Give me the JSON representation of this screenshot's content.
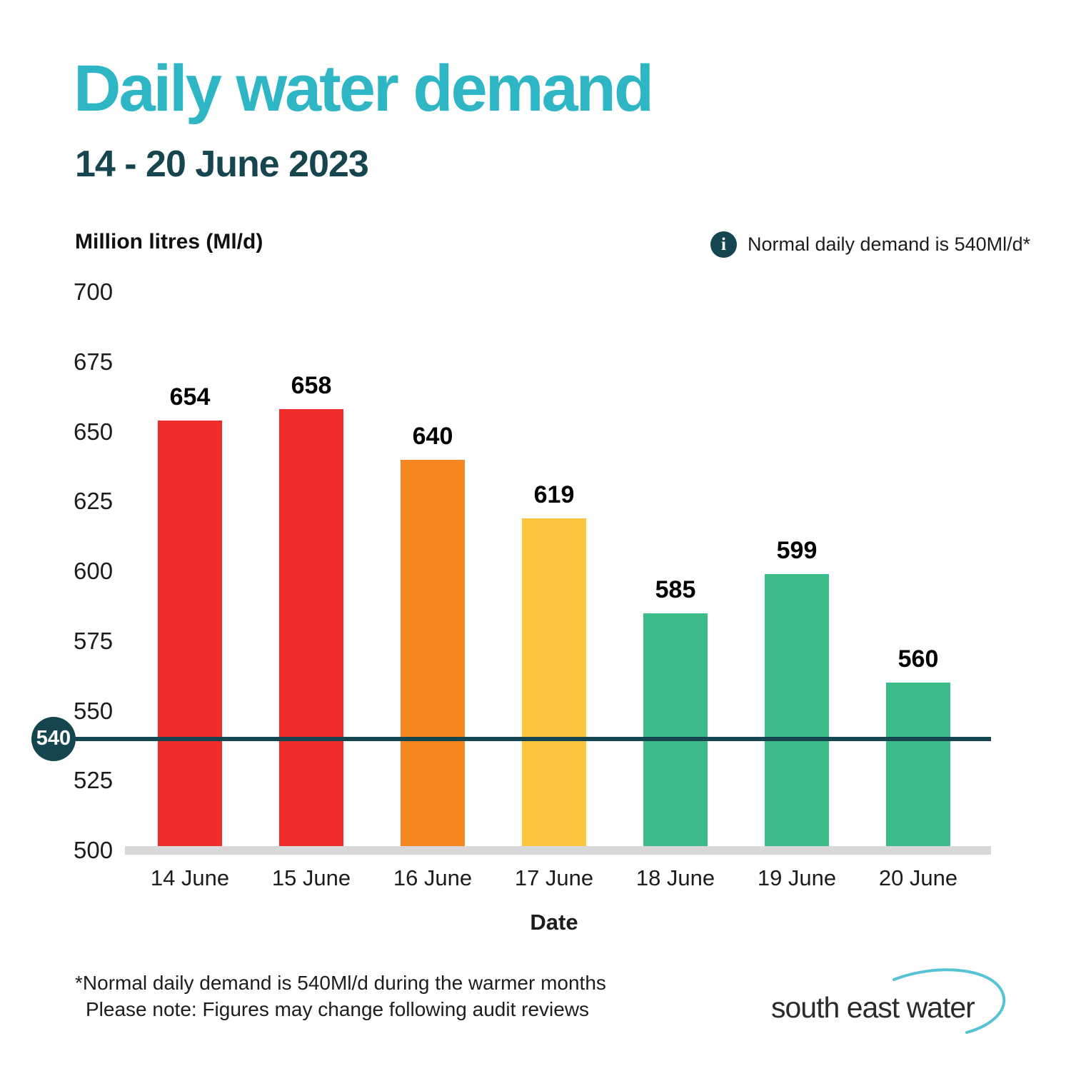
{
  "header": {
    "title": "Daily water demand",
    "subtitle": "14 - 20 June 2023"
  },
  "info": {
    "icon_glyph": "i",
    "text": "Normal daily demand is 540Ml/d*"
  },
  "chart_data": {
    "type": "bar",
    "title": "Daily water demand 14 - 20 June 2023",
    "ylabel": "Million litres (Ml/d)",
    "xlabel": "Date",
    "categories": [
      "14 June",
      "15 June",
      "16 June",
      "17 June",
      "18 June",
      "19 June",
      "20 June"
    ],
    "values": [
      654,
      658,
      640,
      619,
      585,
      599,
      560
    ],
    "bar_colors": [
      "#EE2C2A",
      "#EE2C2A",
      "#F6861F",
      "#FBC540",
      "#3CBB8A",
      "#3CBB8A",
      "#3CBB8A"
    ],
    "yticks": [
      700,
      675,
      650,
      625,
      600,
      575,
      550,
      525,
      500
    ],
    "ylim": [
      500,
      700
    ],
    "grid": false,
    "legend": false,
    "reference_line": {
      "value": 540,
      "label": "540",
      "color": "#15464F"
    }
  },
  "footer": {
    "footnote_line1": "*Normal daily demand is 540Ml/d during the warmer months",
    "footnote_line2": "Please note: Figures may change following audit reviews",
    "logo_text": "south east water"
  },
  "colors": {
    "title_teal": "#2FB6C5",
    "dark_teal": "#15464F",
    "red": "#EE2C2A",
    "orange": "#F6861F",
    "yellow": "#FBC540",
    "green": "#3CBB8A",
    "axis_gray": "#D8D8D8",
    "logo_swoosh": "#55C3D4"
  }
}
